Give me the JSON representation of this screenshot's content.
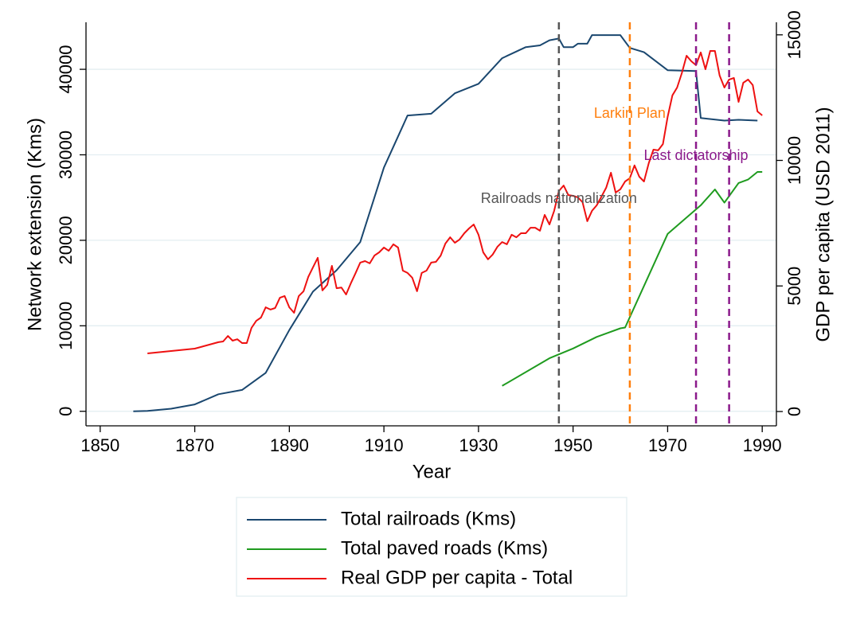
{
  "chart_data": {
    "type": "line",
    "x_label": "Year",
    "y_label": "Network extension (Kms)",
    "y2_label": "GDP per capita (USD 2011)",
    "xlim": [
      1847,
      1993
    ],
    "xticks": [
      1850,
      1870,
      1890,
      1910,
      1930,
      1950,
      1970,
      1990
    ],
    "ylim": [
      -1700,
      45500
    ],
    "yticks": [
      0,
      10000,
      20000,
      30000,
      40000
    ],
    "y2lim": [
      -570,
      15500
    ],
    "y2ticks": [
      0,
      5000,
      10000,
      15000
    ],
    "grid": true,
    "legend": "bottom",
    "series": [
      {
        "name": "Total railroads (Kms)",
        "color": "#1a476f",
        "x": [
          1857,
          1860,
          1865,
          1870,
          1875,
          1880,
          1885,
          1890,
          1895,
          1900,
          1905,
          1910,
          1915,
          1920,
          1925,
          1930,
          1935,
          1940,
          1943,
          1945,
          1947,
          1948,
          1950,
          1951,
          1953,
          1954,
          1960,
          1962,
          1965,
          1970,
          1976,
          1977,
          1982,
          1985,
          1989
        ],
        "values": [
          0,
          50,
          300,
          800,
          2000,
          2500,
          4500,
          9500,
          14000,
          16500,
          19800,
          28500,
          34600,
          34800,
          37200,
          38300,
          41300,
          42600,
          42800,
          43400,
          43600,
          42600,
          42600,
          43000,
          43000,
          44000,
          44000,
          42500,
          42000,
          39900,
          39800,
          34300,
          34000,
          34100,
          34000
        ]
      },
      {
        "name": "Total paved roads (Kms)",
        "color": "#1f9b1f",
        "x": [
          1935,
          1945,
          1950,
          1955,
          1960,
          1961,
          1970,
          1977,
          1980,
          1982,
          1985,
          1987,
          1989,
          1990
        ],
        "values": [
          2977,
          6200,
          7350,
          8700,
          9700,
          9800,
          20750,
          24100,
          25950,
          24400,
          26700,
          27100,
          28000,
          28000
        ]
      },
      {
        "name": "Real GDP per capita - Total",
        "color": "#ee1111",
        "axis": "y2",
        "x": [
          1860,
          1870,
          1875,
          1876,
          1877,
          1878,
          1879,
          1880,
          1881,
          1882,
          1883,
          1884,
          1885,
          1886,
          1887,
          1888,
          1889,
          1890,
          1891,
          1892,
          1893,
          1894,
          1895,
          1896,
          1897,
          1898,
          1899,
          1900,
          1901,
          1902,
          1903,
          1904,
          1905,
          1906,
          1907,
          1908,
          1909,
          1910,
          1911,
          1912,
          1913,
          1914,
          1915,
          1916,
          1917,
          1918,
          1919,
          1920,
          1921,
          1922,
          1923,
          1924,
          1925,
          1926,
          1927,
          1928,
          1929,
          1930,
          1931,
          1932,
          1933,
          1934,
          1935,
          1936,
          1937,
          1938,
          1939,
          1940,
          1941,
          1942,
          1943,
          1944,
          1945,
          1946,
          1947,
          1948,
          1949,
          1950,
          1951,
          1952,
          1953,
          1954,
          1955,
          1956,
          1957,
          1958,
          1959,
          1960,
          1961,
          1962,
          1963,
          1964,
          1965,
          1966,
          1967,
          1968,
          1969,
          1970,
          1971,
          1972,
          1973,
          1974,
          1975,
          1976,
          1977,
          1978,
          1979,
          1980,
          1981,
          1982,
          1983,
          1984,
          1985,
          1986,
          1987,
          1988,
          1989,
          1990
        ],
        "values": [
          2315,
          2505,
          2760,
          2790,
          3010,
          2820,
          2880,
          2725,
          2725,
          3330,
          3610,
          3740,
          4150,
          4060,
          4120,
          4530,
          4600,
          4150,
          3930,
          4600,
          4790,
          5360,
          5740,
          6120,
          4820,
          5040,
          5800,
          4910,
          4940,
          4660,
          5100,
          5510,
          5930,
          5990,
          5900,
          6210,
          6340,
          6530,
          6400,
          6660,
          6530,
          5610,
          5520,
          5330,
          4790,
          5520,
          5610,
          5930,
          5960,
          6210,
          6690,
          6940,
          6720,
          6850,
          7100,
          7290,
          7450,
          7040,
          6340,
          6060,
          6250,
          6560,
          6750,
          6660,
          7040,
          6940,
          7100,
          7100,
          7320,
          7320,
          7200,
          7830,
          7450,
          7990,
          8780,
          9000,
          8620,
          8590,
          8530,
          8340,
          7580,
          7990,
          8210,
          8560,
          8910,
          9510,
          8720,
          8850,
          9160,
          9290,
          9800,
          9350,
          9160,
          9890,
          10430,
          10400,
          10650,
          11730,
          12590,
          12900,
          13470,
          14170,
          13950,
          13790,
          14300,
          13630,
          14360,
          14360,
          13380,
          12900,
          13220,
          13280,
          12330,
          13090,
          13220,
          13000,
          11950,
          11790
        ]
      }
    ],
    "events": [
      {
        "year": 1947,
        "label": "Railroads nationalization",
        "color": "#555555"
      },
      {
        "year": 1962,
        "label": "Larkin Plan",
        "color": "#ff7f0e"
      },
      {
        "year": 1976,
        "label": "Last dictatorship",
        "color": "#8b1a8b"
      },
      {
        "year": 1983,
        "color": "#8b1a8b"
      }
    ]
  }
}
